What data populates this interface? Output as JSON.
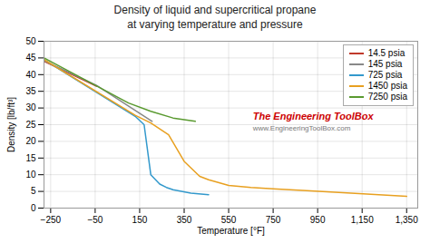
{
  "chart_data": {
    "type": "line",
    "title": "Density of liquid and supercritical propane",
    "subtitle": "at varying temperature and pressure",
    "x_label": "Temperature [°F]",
    "y_label": "Density [lb/ft³]",
    "xlim": [
      -280,
      1400
    ],
    "ylim": [
      0,
      50
    ],
    "xticks": [
      -250,
      -50,
      150,
      350,
      550,
      750,
      950,
      1150,
      1350
    ],
    "yticks": [
      0,
      5,
      10,
      15,
      20,
      25,
      30,
      35,
      40,
      45,
      50
    ],
    "grid": true,
    "legend": "upper right",
    "series": [
      {
        "name": "14.5 psia",
        "color": "#c0392b",
        "x": [
          -280,
          -44
        ],
        "values": [
          44.0,
          36.5
        ]
      },
      {
        "name": "145 psia",
        "color": "#888888",
        "x": [
          -280,
          -44,
          206
        ],
        "values": [
          44.2,
          36.8,
          26.0
        ]
      },
      {
        "name": "725 psia",
        "color": "#3399cc",
        "x": [
          -280,
          130,
          170,
          200,
          240,
          270,
          300,
          380,
          460
        ],
        "values": [
          44.5,
          27.5,
          25.0,
          10.0,
          7.2,
          6.2,
          5.5,
          4.5,
          4.0
        ]
      },
      {
        "name": "1450 psia",
        "color": "#e8a020",
        "x": [
          -280,
          130,
          200,
          280,
          350,
          420,
          460,
          550,
          650,
          750,
          900,
          1100,
          1350
        ],
        "values": [
          44.5,
          27.8,
          25.5,
          22.0,
          14.0,
          9.5,
          8.5,
          6.8,
          6.2,
          5.8,
          5.2,
          4.5,
          3.5
        ]
      },
      {
        "name": "7250 psia",
        "color": "#5a9a30",
        "x": [
          -280,
          100,
          200,
          300,
          400
        ],
        "values": [
          45.0,
          31.5,
          29.0,
          27.0,
          26.0
        ]
      }
    ],
    "annotations": [
      {
        "text": "The Engineering ToolBox",
        "color": "#cc0000"
      },
      {
        "text": "www.EngineeringToolBox.com",
        "color": "#777777"
      }
    ]
  }
}
